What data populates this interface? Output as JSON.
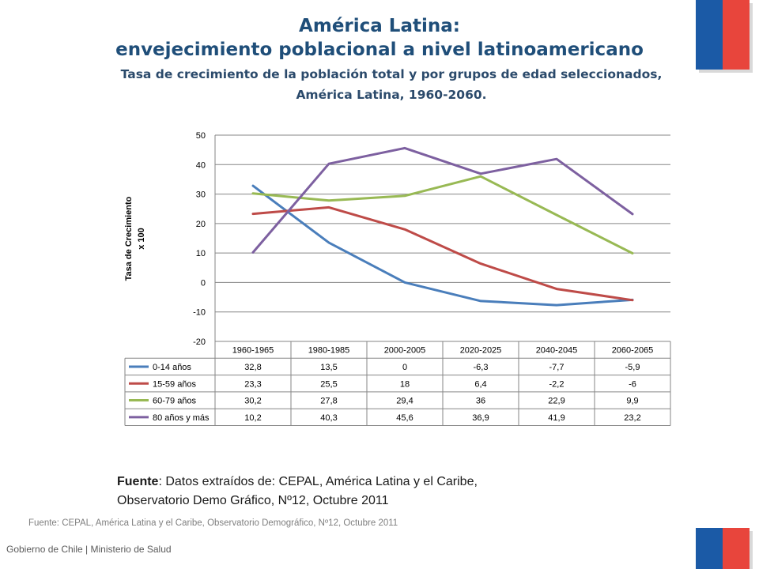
{
  "header": {
    "title_line1": "América Latina:",
    "title_line2": "envejecimiento poblacional a nivel latinoamericano",
    "subtitle_line1": "Tasa de crecimiento de la población total y por grupos de edad seleccionados,",
    "subtitle_line2": "América Latina, 1960-2060."
  },
  "colors": {
    "title": "#1f4e79",
    "flag_blue": "#1b5aa6",
    "flag_red": "#e8453c"
  },
  "chart_data": {
    "type": "line",
    "title": "",
    "xlabel": "",
    "ylabel": "Tasa de Crecimiento x 100",
    "ylabel_line1": "Tasa de Crecimiento",
    "ylabel_line2": "x 100",
    "ylim": [
      -20,
      50
    ],
    "yticks": [
      50,
      40,
      30,
      20,
      10,
      0,
      -10,
      -20
    ],
    "grid": true,
    "legend": "data-table",
    "categories": [
      "1960-1965",
      "1980-1985",
      "2000-2005",
      "2020-2025",
      "2040-2045",
      "2060-2065"
    ],
    "series": [
      {
        "name": "0-14 años",
        "color": "#4a7ebb",
        "values": [
          32.8,
          13.5,
          0,
          -6.3,
          -7.7,
          -5.9
        ],
        "labels": [
          "32,8",
          "13,5",
          "0",
          "-6,3",
          "-7,7",
          "-5,9"
        ]
      },
      {
        "name": "15-59 años",
        "color": "#be4b48",
        "values": [
          23.3,
          25.5,
          18,
          6.4,
          -2.2,
          -6
        ],
        "labels": [
          "23,3",
          "25,5",
          "18",
          "6,4",
          "-2,2",
          "-6"
        ]
      },
      {
        "name": "60-79 años",
        "color": "#98b954",
        "values": [
          30.2,
          27.8,
          29.4,
          36,
          22.9,
          9.9
        ],
        "labels": [
          "30,2",
          "27,8",
          "29,4",
          "36",
          "22,9",
          "9,9"
        ]
      },
      {
        "name": "80 años y más",
        "color": "#7d60a0",
        "values": [
          10.2,
          40.3,
          45.6,
          36.9,
          41.9,
          23.2
        ],
        "labels": [
          "10,2",
          "40,3",
          "45,6",
          "36,9",
          "41,9",
          "23,2"
        ]
      }
    ]
  },
  "source": {
    "label": "Fuente",
    "text_line1": ": Datos extraídos de: CEPAL, América Latina y el Caribe,",
    "text_line2": "Observatorio Demo Gráfico, Nº12, Octubre 2011",
    "small": "Fuente: CEPAL, América Latina y el Caribe, Observatorio Demográfico, Nº12, Octubre 2011"
  },
  "footer": {
    "text": "Gobierno de Chile | Ministerio de Salud"
  }
}
